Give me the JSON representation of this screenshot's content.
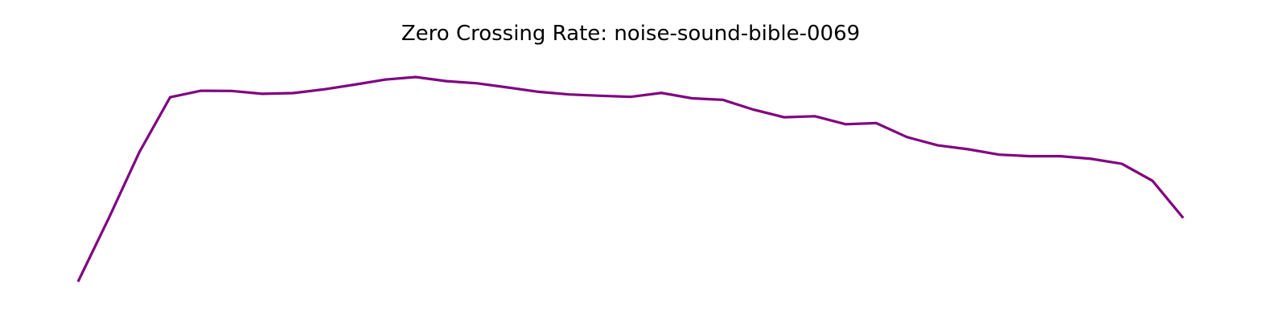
{
  "chart_data": {
    "type": "line",
    "title": "Zero Crossing Rate: noise-sound-bible-0069",
    "xlabel": "",
    "ylabel": "",
    "axes_visible": false,
    "grid": false,
    "legend": "none",
    "series": [
      {
        "color": "#800080",
        "values": [
          0.0,
          0.292,
          0.596,
          0.848,
          0.878,
          0.877,
          0.864,
          0.867,
          0.884,
          0.906,
          0.929,
          0.941,
          0.922,
          0.912,
          0.893,
          0.873,
          0.861,
          0.855,
          0.85,
          0.868,
          0.843,
          0.836,
          0.791,
          0.756,
          0.761,
          0.724,
          0.729,
          0.665,
          0.627,
          0.609,
          0.584,
          0.577,
          0.577,
          0.565,
          0.542,
          0.464,
          0.293
        ]
      }
    ]
  }
}
